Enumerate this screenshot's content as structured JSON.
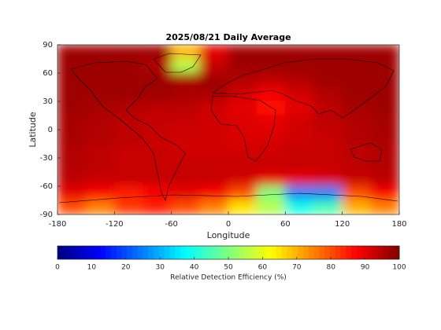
{
  "chart_data": {
    "type": "heatmap",
    "title": "2025/08/21 Daily Average",
    "xlabel": "Longitude",
    "ylabel": "Latitude",
    "colormap": "jet",
    "x": [
      -165,
      -135,
      -105,
      -75,
      -45,
      -15,
      15,
      45,
      75,
      105,
      135,
      165
    ],
    "y": [
      82.5,
      67.5,
      52.5,
      37.5,
      22.5,
      7.5,
      -7.5,
      -22.5,
      -37.5,
      -52.5,
      -67.5,
      -82.5
    ],
    "values": [
      [
        97,
        97,
        97,
        97,
        70,
        90,
        97,
        97,
        97,
        97,
        97,
        97
      ],
      [
        97,
        97,
        97,
        95,
        55,
        93,
        97,
        97,
        97,
        97,
        97,
        97
      ],
      [
        97,
        97,
        97,
        97,
        96,
        97,
        95,
        94,
        95,
        97,
        97,
        97
      ],
      [
        97,
        97,
        97,
        97,
        96,
        96,
        92,
        88,
        92,
        95,
        97,
        97
      ],
      [
        97,
        96,
        95,
        94,
        94,
        92,
        90,
        86,
        90,
        94,
        96,
        97
      ],
      [
        96,
        95,
        94,
        93,
        93,
        92,
        91,
        90,
        92,
        94,
        95,
        96
      ],
      [
        96,
        95,
        94,
        93,
        92,
        92,
        91,
        91,
        92,
        93,
        95,
        96
      ],
      [
        95,
        94,
        93,
        93,
        92,
        92,
        92,
        92,
        93,
        93,
        94,
        95
      ],
      [
        95,
        94,
        93,
        93,
        93,
        93,
        93,
        93,
        93,
        93,
        94,
        95
      ],
      [
        94,
        93,
        93,
        93,
        93,
        93,
        92,
        90,
        90,
        91,
        93,
        94
      ],
      [
        90,
        88,
        85,
        88,
        90,
        88,
        80,
        50,
        25,
        25,
        80,
        88
      ],
      [
        80,
        75,
        82,
        85,
        80,
        75,
        65,
        55,
        40,
        45,
        70,
        75
      ]
    ],
    "xlim": [
      -180,
      180
    ],
    "ylim": [
      -90,
      90
    ],
    "xticks": [
      -180,
      -120,
      -60,
      0,
      60,
      120,
      180
    ],
    "yticks": [
      90,
      60,
      30,
      0,
      -30,
      -60,
      -90
    ],
    "colorbar": {
      "label": "Relative Detection Efficiency (%)",
      "lim": [
        0,
        100
      ],
      "ticks": [
        0,
        10,
        20,
        30,
        40,
        50,
        60,
        70,
        80,
        90,
        100
      ]
    }
  }
}
